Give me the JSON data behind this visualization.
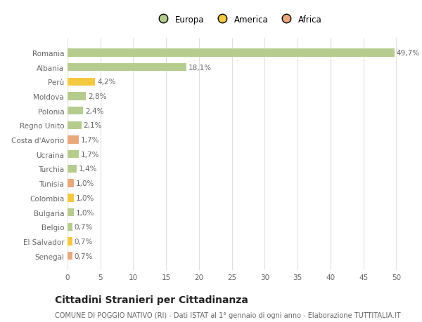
{
  "categories": [
    "Senegal",
    "El Salvador",
    "Belgio",
    "Bulgaria",
    "Colombia",
    "Tunisia",
    "Turchia",
    "Ucraina",
    "Costa d'Avorio",
    "Regno Unito",
    "Polonia",
    "Moldova",
    "Perù",
    "Albania",
    "Romania"
  ],
  "values": [
    0.7,
    0.7,
    0.7,
    1.0,
    1.0,
    1.0,
    1.4,
    1.7,
    1.7,
    2.1,
    2.4,
    2.8,
    4.2,
    18.1,
    49.7
  ],
  "labels": [
    "0,7%",
    "0,7%",
    "0,7%",
    "1,0%",
    "1,0%",
    "1,0%",
    "1,4%",
    "1,7%",
    "1,7%",
    "2,1%",
    "2,4%",
    "2,8%",
    "4,2%",
    "18,1%",
    "49,7%"
  ],
  "colors": [
    "#e8a87c",
    "#f5c842",
    "#b5cc8e",
    "#b5cc8e",
    "#f5c842",
    "#e8a87c",
    "#b5cc8e",
    "#b5cc8e",
    "#e8a87c",
    "#b5cc8e",
    "#b5cc8e",
    "#b5cc8e",
    "#f5c842",
    "#b5cc8e",
    "#b5cc8e"
  ],
  "legend_labels": [
    "Europa",
    "America",
    "Africa"
  ],
  "legend_colors": [
    "#b5cc8e",
    "#f5c842",
    "#e8a87c"
  ],
  "title": "Cittadini Stranieri per Cittadinanza",
  "subtitle": "COMUNE DI POGGIO NATIVO (RI) - Dati ISTAT al 1° gennaio di ogni anno - Elaborazione TUTTITALIA.IT",
  "xlim": [
    0,
    52
  ],
  "xticks": [
    0,
    5,
    10,
    15,
    20,
    25,
    30,
    35,
    40,
    45,
    50
  ],
  "bg_color": "#ffffff",
  "grid_color": "#e0e0e0",
  "bar_height": 0.55,
  "label_fontsize": 7.5,
  "tick_fontsize": 7.5,
  "title_fontsize": 10,
  "subtitle_fontsize": 7,
  "legend_fontsize": 8.5
}
